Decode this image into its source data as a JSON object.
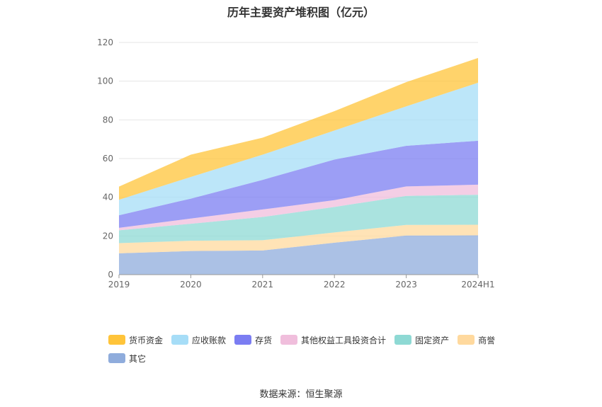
{
  "chart_data": {
    "type": "area",
    "stacked": true,
    "title": "历年主要资产堆积图（亿元）",
    "x": [
      "2019",
      "2020",
      "2021",
      "2022",
      "2023",
      "2024H1"
    ],
    "ylim": [
      0,
      120
    ],
    "yticks": [
      0,
      20,
      40,
      60,
      80,
      100,
      120
    ],
    "grid": true,
    "legend_position": "bottom",
    "series": [
      {
        "name": "其它",
        "color": "#8FACDC",
        "values": [
          11.0,
          12.2,
          12.5,
          16.5,
          20.2,
          20.3
        ]
      },
      {
        "name": "商誉",
        "color": "#FFD99E",
        "values": [
          5.3,
          5.3,
          5.3,
          5.3,
          5.5,
          5.5
        ]
      },
      {
        "name": "固定资产",
        "color": "#8ED9D4",
        "values": [
          6.6,
          8.8,
          12.0,
          13.2,
          15.0,
          15.5
        ]
      },
      {
        "name": "其他权益工具投资合计",
        "color": "#F0BEDC",
        "values": [
          1.3,
          2.7,
          3.9,
          3.5,
          4.9,
          5.2
        ]
      },
      {
        "name": "存货",
        "color": "#7B7DF2",
        "values": [
          6.5,
          10.3,
          15.3,
          21.0,
          21.0,
          22.7
        ]
      },
      {
        "name": "应收账款",
        "color": "#A6DDF7",
        "values": [
          8.0,
          11.2,
          13.0,
          15.0,
          20.4,
          30.0
        ]
      },
      {
        "name": "货币资金",
        "color": "#FFC43A",
        "values": [
          6.8,
          11.5,
          8.8,
          10.0,
          12.5,
          12.8
        ]
      }
    ],
    "legend_order": [
      "货币资金",
      "应收账款",
      "存货",
      "其他权益工具投资合计",
      "固定资产",
      "商誉",
      "其它"
    ]
  },
  "source": "数据来源：恒生聚源"
}
